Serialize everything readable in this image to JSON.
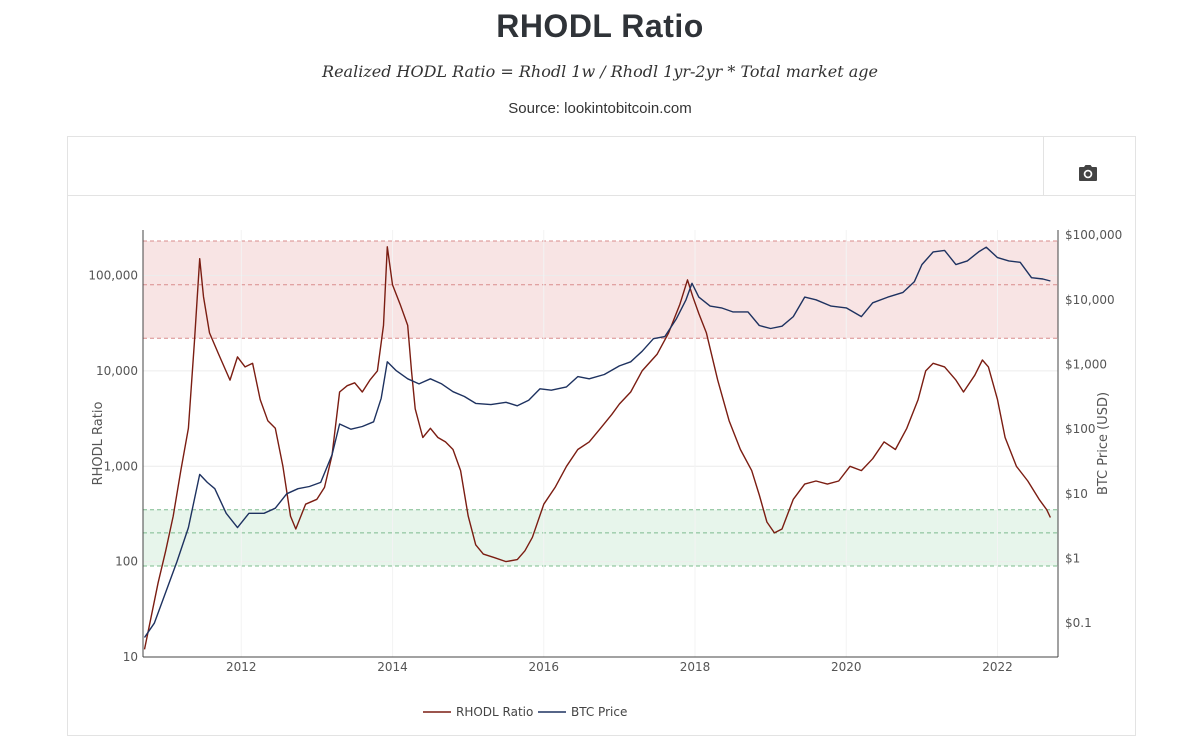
{
  "header": {
    "title": "RHODL Ratio",
    "formula": "Realized HODL Ratio = Rhodl 1w / Rhodl 1yr-2yr * Total market age",
    "source": "Source: lookintobitcoin.com"
  },
  "toolbar": {
    "camera_icon": "camera-icon"
  },
  "colors": {
    "rhodl": "#7b1d12",
    "btc": "#1e3260",
    "red_zone": "#f5d6d6",
    "green_zone": "#e1f2e6",
    "red_line": "#d98b8b",
    "green_line": "#7dbb8e",
    "grid": "#ececec"
  },
  "chart_data": {
    "type": "line",
    "title": "RHODL Ratio",
    "y_scale": "log",
    "ylabel": "RHODL Ratio",
    "y2label": "BTC Price (USD)",
    "x_ticks": [
      "2012",
      "2014",
      "2016",
      "2018",
      "2020",
      "2022"
    ],
    "y_ticks": [
      "10",
      "100",
      "1,000",
      "10,000",
      "100,000"
    ],
    "y2_ticks": [
      "$0.1",
      "$1",
      "$10",
      "$100",
      "$1,000",
      "$10,000",
      "$100,000"
    ],
    "ylim": [
      10,
      300000
    ],
    "y2lim": [
      0.03,
      120000
    ],
    "xlim": [
      2010.7,
      2022.8
    ],
    "bands": {
      "red": {
        "min": 22000,
        "max": 230000,
        "mid": 80000
      },
      "green": {
        "min": 90,
        "max": 350,
        "mid": 200
      }
    },
    "series": [
      {
        "name": "RHODL Ratio",
        "axis": "left",
        "points": [
          [
            2010.72,
            12
          ],
          [
            2010.9,
            60
          ],
          [
            2011.0,
            130
          ],
          [
            2011.1,
            300
          ],
          [
            2011.2,
            900
          ],
          [
            2011.3,
            2500
          ],
          [
            2011.38,
            20000
          ],
          [
            2011.45,
            150000
          ],
          [
            2011.5,
            60000
          ],
          [
            2011.58,
            25000
          ],
          [
            2011.7,
            15000
          ],
          [
            2011.85,
            8000
          ],
          [
            2011.95,
            14000
          ],
          [
            2012.05,
            11000
          ],
          [
            2012.15,
            12000
          ],
          [
            2012.25,
            5000
          ],
          [
            2012.35,
            3000
          ],
          [
            2012.45,
            2500
          ],
          [
            2012.55,
            1000
          ],
          [
            2012.65,
            300
          ],
          [
            2012.72,
            220
          ],
          [
            2012.85,
            400
          ],
          [
            2013.0,
            450
          ],
          [
            2013.1,
            600
          ],
          [
            2013.2,
            1300
          ],
          [
            2013.3,
            6000
          ],
          [
            2013.4,
            7000
          ],
          [
            2013.5,
            7500
          ],
          [
            2013.6,
            6000
          ],
          [
            2013.7,
            8000
          ],
          [
            2013.8,
            10000
          ],
          [
            2013.88,
            30000
          ],
          [
            2013.93,
            200000
          ],
          [
            2014.0,
            80000
          ],
          [
            2014.1,
            50000
          ],
          [
            2014.2,
            30000
          ],
          [
            2014.25,
            10000
          ],
          [
            2014.3,
            4000
          ],
          [
            2014.4,
            2000
          ],
          [
            2014.5,
            2500
          ],
          [
            2014.6,
            2000
          ],
          [
            2014.7,
            1800
          ],
          [
            2014.8,
            1500
          ],
          [
            2014.9,
            900
          ],
          [
            2015.0,
            300
          ],
          [
            2015.1,
            150
          ],
          [
            2015.2,
            120
          ],
          [
            2015.35,
            110
          ],
          [
            2015.5,
            100
          ],
          [
            2015.65,
            105
          ],
          [
            2015.75,
            130
          ],
          [
            2015.85,
            180
          ],
          [
            2016.0,
            400
          ],
          [
            2016.15,
            600
          ],
          [
            2016.3,
            1000
          ],
          [
            2016.45,
            1500
          ],
          [
            2016.6,
            1800
          ],
          [
            2016.75,
            2500
          ],
          [
            2016.9,
            3500
          ],
          [
            2017.0,
            4500
          ],
          [
            2017.15,
            6000
          ],
          [
            2017.3,
            10000
          ],
          [
            2017.5,
            15000
          ],
          [
            2017.65,
            25000
          ],
          [
            2017.8,
            50000
          ],
          [
            2017.9,
            90000
          ],
          [
            2017.97,
            60000
          ],
          [
            2018.05,
            40000
          ],
          [
            2018.15,
            25000
          ],
          [
            2018.3,
            8000
          ],
          [
            2018.45,
            3000
          ],
          [
            2018.6,
            1500
          ],
          [
            2018.75,
            900
          ],
          [
            2018.85,
            500
          ],
          [
            2018.95,
            260
          ],
          [
            2019.05,
            200
          ],
          [
            2019.15,
            220
          ],
          [
            2019.3,
            450
          ],
          [
            2019.45,
            650
          ],
          [
            2019.6,
            700
          ],
          [
            2019.75,
            650
          ],
          [
            2019.9,
            700
          ],
          [
            2020.05,
            1000
          ],
          [
            2020.2,
            900
          ],
          [
            2020.35,
            1200
          ],
          [
            2020.5,
            1800
          ],
          [
            2020.65,
            1500
          ],
          [
            2020.8,
            2500
          ],
          [
            2020.95,
            5000
          ],
          [
            2021.05,
            10000
          ],
          [
            2021.15,
            12000
          ],
          [
            2021.3,
            11000
          ],
          [
            2021.45,
            8000
          ],
          [
            2021.55,
            6000
          ],
          [
            2021.7,
            9000
          ],
          [
            2021.8,
            13000
          ],
          [
            2021.88,
            11000
          ],
          [
            2022.0,
            5000
          ],
          [
            2022.1,
            2000
          ],
          [
            2022.25,
            1000
          ],
          [
            2022.4,
            700
          ],
          [
            2022.55,
            450
          ],
          [
            2022.65,
            350
          ],
          [
            2022.7,
            290
          ]
        ]
      },
      {
        "name": "BTC Price",
        "axis": "right",
        "points": [
          [
            2010.72,
            0.06
          ],
          [
            2010.85,
            0.1
          ],
          [
            2011.0,
            0.3
          ],
          [
            2011.15,
            0.9
          ],
          [
            2011.3,
            3
          ],
          [
            2011.45,
            20
          ],
          [
            2011.55,
            15
          ],
          [
            2011.65,
            12
          ],
          [
            2011.8,
            5
          ],
          [
            2011.95,
            3
          ],
          [
            2012.1,
            5
          ],
          [
            2012.3,
            5
          ],
          [
            2012.45,
            6
          ],
          [
            2012.6,
            10
          ],
          [
            2012.75,
            12
          ],
          [
            2012.9,
            13
          ],
          [
            2013.05,
            15
          ],
          [
            2013.2,
            40
          ],
          [
            2013.3,
            120
          ],
          [
            2013.45,
            100
          ],
          [
            2013.6,
            110
          ],
          [
            2013.75,
            130
          ],
          [
            2013.85,
            300
          ],
          [
            2013.93,
            1100
          ],
          [
            2014.05,
            800
          ],
          [
            2014.2,
            600
          ],
          [
            2014.35,
            500
          ],
          [
            2014.5,
            600
          ],
          [
            2014.65,
            500
          ],
          [
            2014.8,
            380
          ],
          [
            2014.95,
            320
          ],
          [
            2015.1,
            250
          ],
          [
            2015.3,
            240
          ],
          [
            2015.5,
            260
          ],
          [
            2015.65,
            230
          ],
          [
            2015.8,
            280
          ],
          [
            2015.95,
            420
          ],
          [
            2016.1,
            400
          ],
          [
            2016.3,
            450
          ],
          [
            2016.45,
            650
          ],
          [
            2016.6,
            600
          ],
          [
            2016.8,
            700
          ],
          [
            2017.0,
            950
          ],
          [
            2017.15,
            1100
          ],
          [
            2017.3,
            1600
          ],
          [
            2017.45,
            2500
          ],
          [
            2017.6,
            2700
          ],
          [
            2017.75,
            5000
          ],
          [
            2017.88,
            10000
          ],
          [
            2017.96,
            18000
          ],
          [
            2018.05,
            11000
          ],
          [
            2018.2,
            8000
          ],
          [
            2018.35,
            7500
          ],
          [
            2018.5,
            6500
          ],
          [
            2018.7,
            6500
          ],
          [
            2018.85,
            4000
          ],
          [
            2019.0,
            3600
          ],
          [
            2019.15,
            3900
          ],
          [
            2019.3,
            5500
          ],
          [
            2019.45,
            11000
          ],
          [
            2019.6,
            10000
          ],
          [
            2019.8,
            8000
          ],
          [
            2020.0,
            7500
          ],
          [
            2020.2,
            5500
          ],
          [
            2020.35,
            9000
          ],
          [
            2020.55,
            11000
          ],
          [
            2020.75,
            13000
          ],
          [
            2020.9,
            19000
          ],
          [
            2021.0,
            35000
          ],
          [
            2021.15,
            55000
          ],
          [
            2021.3,
            58000
          ],
          [
            2021.45,
            35000
          ],
          [
            2021.6,
            40000
          ],
          [
            2021.75,
            55000
          ],
          [
            2021.85,
            65000
          ],
          [
            2022.0,
            45000
          ],
          [
            2022.15,
            40000
          ],
          [
            2022.3,
            38000
          ],
          [
            2022.45,
            22000
          ],
          [
            2022.6,
            21000
          ],
          [
            2022.7,
            19500
          ]
        ]
      }
    ],
    "legend": {
      "position": "bottom",
      "items": [
        "RHODL Ratio",
        "BTC Price"
      ]
    }
  }
}
